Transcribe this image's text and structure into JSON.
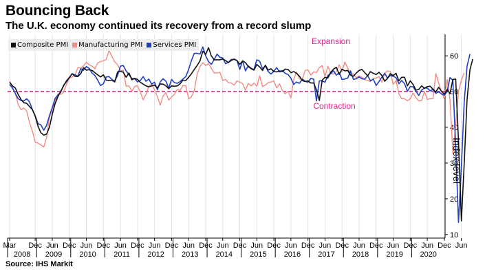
{
  "title": "Bouncing Back",
  "subtitle": "The U.K. economy continued its recovery from a record slump",
  "source": "Source: IHS Markit",
  "chart_data": {
    "type": "line",
    "x_start": "2008-03",
    "frequency": "monthly",
    "ylabel": "Index level",
    "ylim": [
      9,
      66
    ],
    "yticks": [
      10,
      20,
      30,
      40,
      50,
      60
    ],
    "grid": "vertical",
    "legend_position": "top-left",
    "x_month_ticks": [
      "Mar",
      "Dec",
      "Jun",
      "Dec",
      "Jun",
      "Dec",
      "Jun",
      "Dec",
      "Jun",
      "Dec",
      "Jun",
      "Dec",
      "Jun",
      "Dec",
      "Jun",
      "Dec",
      "Jun",
      "Dec",
      "Jun",
      "Dec",
      "Jun",
      "Dec",
      "Jun",
      "Dec",
      "Jun",
      "Dec",
      "Jun"
    ],
    "x_year_labels": [
      "2008",
      "2009",
      "2010",
      "2011",
      "2012",
      "2013",
      "2014",
      "2015",
      "2016",
      "2017",
      "2018",
      "2019",
      "2020"
    ],
    "reference_line": {
      "value": 50,
      "label_above": "Expansion",
      "label_below": "Contraction",
      "color": "#e0218a"
    },
    "series": [
      {
        "name": "Composite PMI",
        "color": "#111111",
        "values": [
          52.6,
          51.6,
          51.0,
          49.2,
          47.8,
          46.9,
          46.7,
          45.8,
          45.0,
          43.1,
          40.3,
          38.5,
          37.8,
          38.1,
          40.0,
          43.6,
          46.6,
          48.6,
          50.1,
          51.6,
          53.0,
          53.9,
          55.0,
          54.3,
          54.2,
          55.0,
          56.7,
          56.0,
          56.1,
          55.9,
          55.3,
          54.7,
          54.1,
          54.7,
          53.2,
          53.1,
          53.2,
          52.7,
          55.5,
          55.7,
          55.4,
          54.0,
          55.2,
          53.3,
          53.7,
          53.4,
          52.6,
          52.1,
          51.6,
          51.3,
          51.6,
          51.8,
          51.0,
          52.1,
          52.1,
          51.6,
          50.8,
          51.6,
          51.5,
          51.6,
          52.2,
          53.2,
          53.1,
          54.0,
          55.0,
          56.2,
          57.3,
          58.6,
          61.3,
          60.4,
          62.3,
          60.0,
          58.9,
          58.9,
          58.9,
          59.1,
          58.7,
          58.1,
          58.7,
          59.1,
          58.7,
          57.6,
          58.6,
          58.1,
          57.0,
          56.4,
          56.0,
          57.6,
          56.9,
          55.9,
          57.4,
          56.0,
          56.4,
          55.6,
          55.5,
          55.8,
          55.6,
          56.3,
          56.2,
          55.3,
          55.6,
          55.1,
          54.3,
          53.1,
          52.8,
          53.0,
          52.4,
          52.4,
          50.5,
          47.5,
          53.2,
          54.0,
          53.8,
          55.4,
          56.3,
          56.8,
          54.8,
          56.3,
          55.8,
          55.9,
          54.6,
          54.3,
          55.2,
          55.9,
          56.2,
          55.3,
          54.4,
          55.6,
          55.1,
          54.8,
          55.4,
          54.5,
          52.9,
          53.7,
          55.0,
          54.5,
          55.1,
          53.0,
          54.0,
          54.0,
          51.6,
          53.0,
          52.0,
          50.4,
          50.6,
          51.6,
          50.9,
          51.4,
          51.5,
          50.7,
          49.9,
          51.2,
          50.1,
          49.3,
          50.6,
          49.4,
          53.4,
          53.5,
          36.0,
          13.8,
          30.0,
          47.7,
          56.1,
          59.1
        ],
        "note": "Composite values approximated from the chart, one point per month"
      },
      {
        "name": "Manufacturing PMI",
        "color": "#f28b82",
        "values": [
          53.0,
          51.2,
          49.5,
          46.4,
          44.9,
          45.4,
          44.6,
          41.3,
          39.0,
          35.8,
          35.6,
          35.1,
          34.5,
          37.1,
          42.7,
          44.9,
          47.2,
          49.4,
          49.2,
          49.8,
          52.0,
          53.7,
          54.1,
          54.6,
          56.7,
          56.6,
          57.2,
          58.2,
          57.5,
          57.1,
          56.4,
          58.0,
          58.4,
          58.6,
          59.0,
          61.5,
          59.8,
          58.3,
          57.5,
          55.8,
          56.0,
          51.5,
          51.6,
          50.1,
          51.4,
          51.7,
          49.8,
          47.7,
          49.2,
          51.5,
          52.1,
          50.5,
          48.5,
          46.2,
          48.8,
          49.7,
          47.6,
          48.5,
          49.2,
          50.6,
          50.3,
          51.7,
          51.6,
          47.9,
          48.6,
          50.3,
          54.9,
          57.0,
          58.1,
          57.3,
          57.8,
          56.5,
          55.2,
          55.2,
          55.4,
          53.1,
          53.4,
          52.5,
          52.4,
          51.8,
          53.0,
          52.7,
          52.2,
          50.4,
          52.3,
          51.6,
          52.4,
          51.5,
          54.4,
          51.4,
          51.8,
          52.5,
          52.7,
          53.0,
          51.0,
          52.2,
          50.3,
          49.4,
          50.1,
          48.2,
          53.4,
          55.5,
          53.6,
          53.4,
          55.9,
          56.1,
          54.6,
          55.5,
          55.3,
          56.7,
          57.3,
          54.2,
          57.1,
          55.1,
          54.9,
          55.6,
          57.5,
          55.6,
          58.3,
          56.5,
          55.1,
          54.9,
          53.9,
          54.4,
          54.0,
          53.3,
          53.1,
          52.8,
          53.6,
          53.8,
          54.2,
          52.6,
          55.1,
          55.8,
          55.6,
          52.0,
          53.1,
          49.4,
          48.0,
          48.0,
          47.4,
          48.0,
          49.6,
          48.3,
          47.4,
          47.5,
          50.0,
          47.8,
          48.0,
          48.0,
          55.0,
          52.4,
          49.9,
          48.0,
          53.4,
          47.8,
          32.6,
          40.7,
          50.1,
          53.3,
          55.2
        ],
        "note": "Manufacturing values approximated from the chart, one point per month"
      },
      {
        "name": "Services PMI",
        "color": "#1f3fbf",
        "values": [
          52.0,
          51.0,
          49.5,
          48.0,
          47.5,
          47.4,
          48.0,
          47.1,
          45.0,
          43.2,
          41.0,
          40.7,
          39.2,
          40.5,
          43.2,
          45.5,
          48.1,
          49.0,
          49.8,
          51.8,
          52.7,
          53.9,
          55.0,
          54.7,
          54.3,
          56.4,
          56.0,
          57.0,
          56.5,
          55.2,
          54.5,
          53.2,
          51.7,
          52.2,
          54.1,
          54.2,
          53.4,
          52.9,
          54.5,
          57.1,
          57.3,
          55.8,
          54.7,
          53.7,
          53.6,
          52.7,
          53.1,
          54.2,
          52.9,
          53.5,
          52.1,
          52.6,
          50.5,
          52.7,
          53.6,
          52.9,
          50.9,
          53.4,
          52.5,
          52.3,
          52.8,
          53.5,
          54.2,
          56.2,
          58.7,
          60.7,
          60.7,
          60.5,
          62.5,
          60.0,
          58.4,
          57.6,
          59.0,
          60.5,
          59.6,
          59.4,
          57.8,
          58.2,
          59.0,
          59.0,
          58.7,
          56.2,
          58.6,
          55.8,
          57.2,
          56.5,
          56.2,
          58.9,
          58.5,
          56.4,
          57.2,
          55.6,
          54.9,
          55.7,
          56.7,
          55.5,
          55.9,
          55.1,
          54.8,
          53.7,
          52.0,
          52.7,
          52.3,
          53.5,
          52.9,
          52.6,
          53.7,
          53.5,
          47.4,
          53.0,
          53.0,
          52.6,
          54.5,
          55.0,
          55.8,
          54.6,
          55.3,
          53.4,
          53.5,
          53.8,
          55.8,
          53.4,
          53.6,
          54.1,
          53.6,
          53.5,
          54.5,
          53.0,
          53.5,
          51.7,
          52.8,
          54.0,
          55.1,
          53.8,
          54.5,
          54.3,
          53.9,
          52.2,
          53.1,
          52.2,
          50.1,
          51.4,
          51.3,
          50.1,
          48.9,
          50.4,
          51.0,
          51.0,
          50.2,
          50.6,
          49.5,
          50.0,
          49.3,
          49.0,
          50.0,
          53.9,
          53.2,
          34.5,
          13.4,
          29.0,
          47.1,
          57.1,
          60.5
        ],
        "note": "Services values approximated from the chart, one point per month"
      }
    ]
  }
}
